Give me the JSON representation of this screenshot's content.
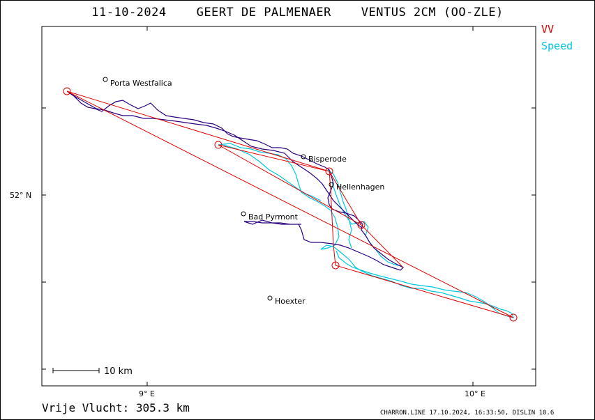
{
  "header": {
    "date": "11-10-2024",
    "pilot": "GEERT DE PALMENAER",
    "glider": "VENTUS 2CM (OO-ZLE)"
  },
  "legend": {
    "vv": "VV",
    "speed": "Speed",
    "vv_color": "#e00000",
    "speed_color": "#00c8e0",
    "track_color": "#2a0080"
  },
  "axes": {
    "lat_label": "52° N",
    "lon_labels": [
      "9° E",
      "10° E"
    ]
  },
  "places": [
    {
      "name": "Porta Westfalica"
    },
    {
      "name": "Bisperode"
    },
    {
      "name": "Hellenhagen"
    },
    {
      "name": "Bad Pyrmont"
    },
    {
      "name": "Hoexter"
    }
  ],
  "scale": {
    "label": "10  km"
  },
  "summary": {
    "distance": "Vrije Vlucht:  305.3 km"
  },
  "footer": {
    "credit": "CHARRON.LINE 17.10.2024, 16:33:50, DISLIN 10.6"
  }
}
